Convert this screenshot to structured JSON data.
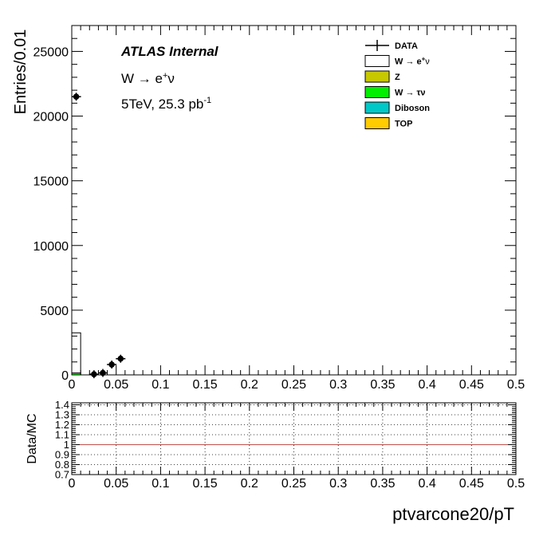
{
  "chart_data": [
    {
      "type": "bar",
      "panel": "main",
      "xlabel": "ptvarcone20/pT",
      "ylabel": "Entries/0.01",
      "xlim": [
        0,
        0.5
      ],
      "ylim": [
        0,
        27000
      ],
      "x_ticks": [
        "0",
        "0.05",
        "0.1",
        "0.15",
        "0.2",
        "0.25",
        "0.3",
        "0.35",
        "0.4",
        "0.45",
        "0.5"
      ],
      "y_ticks": [
        "0",
        "5000",
        "10000",
        "15000",
        "20000",
        "25000"
      ],
      "y_tick_values": [
        0,
        5000,
        10000,
        15000,
        20000,
        25000
      ],
      "annotations": {
        "atlas": "ATLAS Internal",
        "process": "W → e",
        "process_sup": "+",
        "process_end": "ν",
        "energy": "5TeV, 25.3 pb",
        "energy_sup": "-1"
      },
      "legend": {
        "placement": "top-right",
        "entries": [
          {
            "key": "data",
            "label": "DATA",
            "color": "#000000",
            "style": "marker"
          },
          {
            "key": "wenu",
            "label": "W  → e",
            "sup": "+",
            "end": "ν",
            "color": "#ffffff",
            "style": "box"
          },
          {
            "key": "z",
            "label": "Z",
            "color": "#c8c800",
            "style": "box"
          },
          {
            "key": "wtaunu",
            "label": "W  → τν",
            "color": "#00ee00",
            "style": "box"
          },
          {
            "key": "diboson",
            "label": "Diboson",
            "color": "#00c8c8",
            "style": "box"
          },
          {
            "key": "top",
            "label": "TOP",
            "color": "#ffcc00",
            "style": "box"
          }
        ]
      },
      "stack": {
        "bin_edges": [
          0,
          0.01
        ],
        "series": [
          {
            "name": "W → τν",
            "color": "#00ee00",
            "values": [
              150
            ]
          },
          {
            "name": "W → e+ν",
            "color": "#ffffff",
            "values": [
              3100
            ]
          }
        ]
      },
      "data_points": {
        "name": "DATA",
        "x": [
          0.005,
          0.025,
          0.035,
          0.045,
          0.055
        ],
        "y": [
          21500,
          50,
          150,
          800,
          1250
        ]
      }
    },
    {
      "type": "line",
      "panel": "ratio",
      "ylabel": "Data/MC",
      "xlim": [
        0,
        0.5
      ],
      "ylim": [
        0.7,
        1.42
      ],
      "x_ticks": [
        "0",
        "0.05",
        "0.1",
        "0.15",
        "0.2",
        "0.25",
        "0.3",
        "0.35",
        "0.4",
        "0.45",
        "0.5"
      ],
      "y_ticks": [
        "0.7",
        "0.8",
        "0.9",
        "1",
        "1.1",
        "1.2",
        "1.3",
        "1.4"
      ],
      "y_tick_values": [
        0.7,
        0.8,
        0.9,
        1.0,
        1.1,
        1.2,
        1.3,
        1.4
      ],
      "grid": true,
      "reference_line": {
        "y": 1.0,
        "color": "#c0504d"
      }
    }
  ]
}
